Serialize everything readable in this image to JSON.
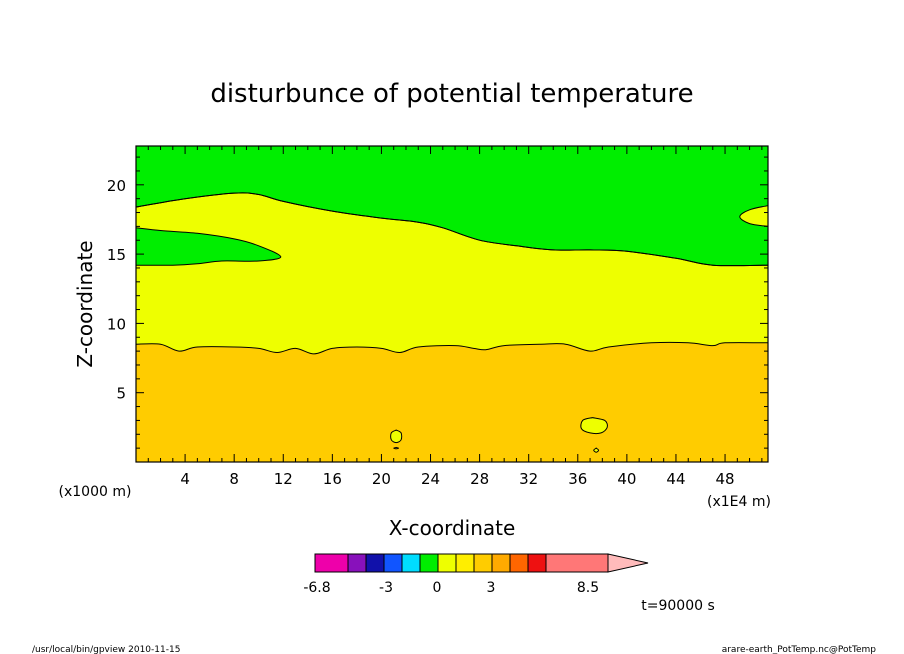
{
  "chart_data": {
    "type": "contour",
    "title": "disturbunce of potential temperature",
    "xlabel": "X-coordinate",
    "ylabel": "Z-coordinate",
    "x_unit": "(x1E4 m)",
    "y_unit": "(x1000 m)",
    "xlim": [
      0,
      51.5
    ],
    "ylim": [
      0,
      22.8
    ],
    "x_ticks": [
      4,
      8,
      12,
      16,
      20,
      24,
      28,
      32,
      36,
      40,
      44,
      48
    ],
    "y_ticks": [
      5,
      10,
      15,
      20
    ],
    "fill_colors": {
      "orange": "#ffcc00",
      "yellow": "#eeff00",
      "green": "#00ee00"
    },
    "contours": {
      "lower": [
        [
          0,
          8.5
        ],
        [
          2,
          8.5
        ],
        [
          3.5,
          8.0
        ],
        [
          5,
          8.3
        ],
        [
          8,
          8.3
        ],
        [
          10,
          8.2
        ],
        [
          11.5,
          7.9
        ],
        [
          13,
          8.2
        ],
        [
          14.5,
          7.8
        ],
        [
          16,
          8.2
        ],
        [
          18,
          8.3
        ],
        [
          20,
          8.2
        ],
        [
          21.5,
          7.9
        ],
        [
          23,
          8.3
        ],
        [
          26,
          8.4
        ],
        [
          27.5,
          8.2
        ],
        [
          28.5,
          8.1
        ],
        [
          30,
          8.4
        ],
        [
          33,
          8.5
        ],
        [
          35,
          8.5
        ],
        [
          37,
          8.0
        ],
        [
          38.5,
          8.3
        ],
        [
          42,
          8.6
        ],
        [
          45,
          8.6
        ],
        [
          47,
          8.4
        ],
        [
          48,
          8.6
        ],
        [
          51.5,
          8.6
        ]
      ],
      "upper": [
        [
          0,
          18.4
        ],
        [
          4,
          19.0
        ],
        [
          8,
          19.4
        ],
        [
          10,
          19.3
        ],
        [
          12,
          18.8
        ],
        [
          16,
          18.1
        ],
        [
          20,
          17.6
        ],
        [
          23,
          17.3
        ],
        [
          25,
          16.9
        ],
        [
          28,
          16.0
        ],
        [
          31,
          15.6
        ],
        [
          34,
          15.3
        ],
        [
          37,
          15.3
        ],
        [
          40,
          15.2
        ],
        [
          44,
          14.7
        ],
        [
          47,
          14.2
        ],
        [
          51.5,
          14.2
        ]
      ],
      "green_tongue": [
        [
          0,
          16.9
        ],
        [
          2,
          16.7
        ],
        [
          5,
          16.5
        ],
        [
          8,
          16.1
        ],
        [
          10,
          15.6
        ],
        [
          11.8,
          14.8
        ],
        [
          10,
          14.5
        ],
        [
          7,
          14.5
        ],
        [
          5,
          14.3
        ],
        [
          3,
          14.2
        ],
        [
          0,
          14.2
        ]
      ],
      "yellow_patch_right": [
        [
          51.5,
          18.5
        ],
        [
          50,
          18.2
        ],
        [
          49.2,
          17.7
        ],
        [
          50,
          17.2
        ],
        [
          51.5,
          17.0
        ]
      ],
      "small_loop_1": [
        [
          21.2,
          2.3
        ],
        [
          21.6,
          2.1
        ],
        [
          21.6,
          1.6
        ],
        [
          21.2,
          1.4
        ],
        [
          20.8,
          1.6
        ],
        [
          20.8,
          2.1
        ]
      ],
      "small_loop_2": [
        [
          21.2,
          1.05
        ],
        [
          21.4,
          1.0
        ],
        [
          21.2,
          0.95
        ],
        [
          21.0,
          1.0
        ]
      ],
      "small_loop_3": [
        [
          37.2,
          3.2
        ],
        [
          38.2,
          3.0
        ],
        [
          38.4,
          2.5
        ],
        [
          37.9,
          2.1
        ],
        [
          37.0,
          2.1
        ],
        [
          36.3,
          2.4
        ],
        [
          36.4,
          3.0
        ]
      ],
      "small_loop_4": [
        [
          37.5,
          1.0
        ],
        [
          37.7,
          0.85
        ],
        [
          37.5,
          0.7
        ],
        [
          37.3,
          0.85
        ]
      ]
    },
    "colorbar": {
      "colors": [
        "#ee00aa",
        "#8811bb",
        "#1111aa",
        "#1155ff",
        "#00ddff",
        "#00ee00",
        "#eeff00",
        "#ffee00",
        "#ffcc00",
        "#ffaa00",
        "#ff6600",
        "#ee1111",
        "#ff7777"
      ],
      "extension_color": "#ffbbbb",
      "tick_labels": [
        "-6.8",
        "-3",
        "0",
        "3",
        "8.5"
      ]
    },
    "time_label": "t=90000 s",
    "footer_left": "/usr/local/bin/gpview   2010-11-15",
    "footer_right": "arare-earth_PotTemp.nc@PotTemp"
  }
}
